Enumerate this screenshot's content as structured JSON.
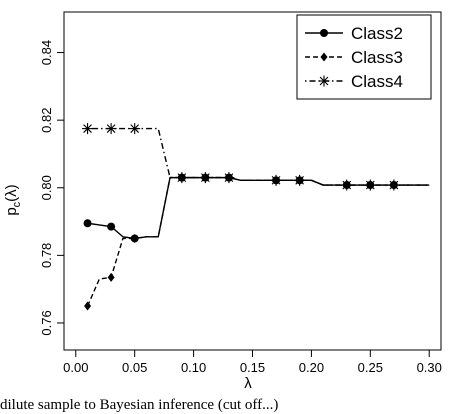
{
  "chart_data": {
    "type": "line",
    "title": "",
    "xlabel": "λ",
    "ylabel": "p_c(λ)",
    "ylabel_main": "p",
    "ylabel_sub": "c",
    "ylabel_arg": "(λ)",
    "xlim": [
      -0.01,
      0.31
    ],
    "ylim": [
      0.752,
      0.852
    ],
    "xticks": [
      0.0,
      0.05,
      0.1,
      0.15,
      0.2,
      0.25,
      0.3
    ],
    "xtick_labels": [
      "0.00",
      "0.05",
      "0.10",
      "0.15",
      "0.20",
      "0.25",
      "0.30"
    ],
    "yticks": [
      0.76,
      0.78,
      0.8,
      0.82,
      0.84
    ],
    "ytick_labels": [
      "0.76",
      "0.78",
      "0.80",
      "0.82",
      "0.84"
    ],
    "grid": false,
    "legend_position": "top-right",
    "series": [
      {
        "name": "Class2",
        "line_style": "solid",
        "marker": "circle",
        "x": [
          0.01,
          0.02,
          0.03,
          0.04,
          0.05,
          0.06,
          0.07,
          0.08,
          0.09,
          0.1,
          0.11,
          0.12,
          0.13,
          0.14,
          0.15,
          0.16,
          0.17,
          0.18,
          0.19,
          0.2,
          0.21,
          0.22,
          0.23,
          0.24,
          0.25,
          0.26,
          0.27,
          0.28,
          0.29,
          0.3
        ],
        "values": [
          0.7895,
          0.789,
          0.7885,
          0.7855,
          0.785,
          0.7855,
          0.7855,
          0.803,
          0.803,
          0.803,
          0.803,
          0.803,
          0.803,
          0.8022,
          0.8022,
          0.8022,
          0.8022,
          0.8022,
          0.8022,
          0.8022,
          0.8008,
          0.8008,
          0.8008,
          0.8008,
          0.8008,
          0.8008,
          0.8008,
          0.8008,
          0.8008,
          0.8008
        ],
        "marker_x": [
          0.01,
          0.03,
          0.05,
          0.09,
          0.11,
          0.13,
          0.17,
          0.19,
          0.23,
          0.25,
          0.27
        ]
      },
      {
        "name": "Class3",
        "line_style": "dashed",
        "marker": "diamond",
        "x": [
          0.01,
          0.02,
          0.03,
          0.04,
          0.05,
          0.06,
          0.07,
          0.08,
          0.09,
          0.1,
          0.11,
          0.12,
          0.13,
          0.14,
          0.15,
          0.16,
          0.17,
          0.18,
          0.19,
          0.2,
          0.21,
          0.22,
          0.23,
          0.24,
          0.25,
          0.26,
          0.27,
          0.28,
          0.29,
          0.3
        ],
        "values": [
          0.765,
          0.773,
          0.7735,
          0.785,
          0.785,
          0.7855,
          0.7855,
          0.803,
          0.803,
          0.803,
          0.803,
          0.803,
          0.803,
          0.8022,
          0.8022,
          0.8022,
          0.8022,
          0.8022,
          0.8022,
          0.8022,
          0.8008,
          0.8008,
          0.8008,
          0.8008,
          0.8008,
          0.8008,
          0.8008,
          0.8008,
          0.8008,
          0.8008
        ],
        "marker_x": [
          0.01,
          0.03,
          0.05,
          0.09,
          0.11,
          0.13,
          0.17,
          0.19,
          0.23,
          0.25,
          0.27
        ]
      },
      {
        "name": "Class4",
        "line_style": "dotdash",
        "marker": "asterisk",
        "x": [
          0.01,
          0.02,
          0.03,
          0.04,
          0.05,
          0.06,
          0.07,
          0.08,
          0.09,
          0.1,
          0.11,
          0.12,
          0.13,
          0.14,
          0.15,
          0.16,
          0.17,
          0.18,
          0.19,
          0.2,
          0.21,
          0.22,
          0.23,
          0.24,
          0.25,
          0.26,
          0.27,
          0.28,
          0.29,
          0.3
        ],
        "values": [
          0.8175,
          0.8175,
          0.8175,
          0.8175,
          0.8175,
          0.8175,
          0.8175,
          0.803,
          0.803,
          0.803,
          0.803,
          0.803,
          0.803,
          0.8022,
          0.8022,
          0.8022,
          0.8022,
          0.8022,
          0.8022,
          0.8022,
          0.8008,
          0.8008,
          0.8008,
          0.8008,
          0.8008,
          0.8008,
          0.8008,
          0.8008,
          0.8008,
          0.8008
        ],
        "marker_x": [
          0.01,
          0.03,
          0.05,
          0.09,
          0.11,
          0.13,
          0.17,
          0.19,
          0.23,
          0.25,
          0.27
        ]
      }
    ]
  },
  "caption": "dilute sample to Bayesian inference (cut off...)"
}
